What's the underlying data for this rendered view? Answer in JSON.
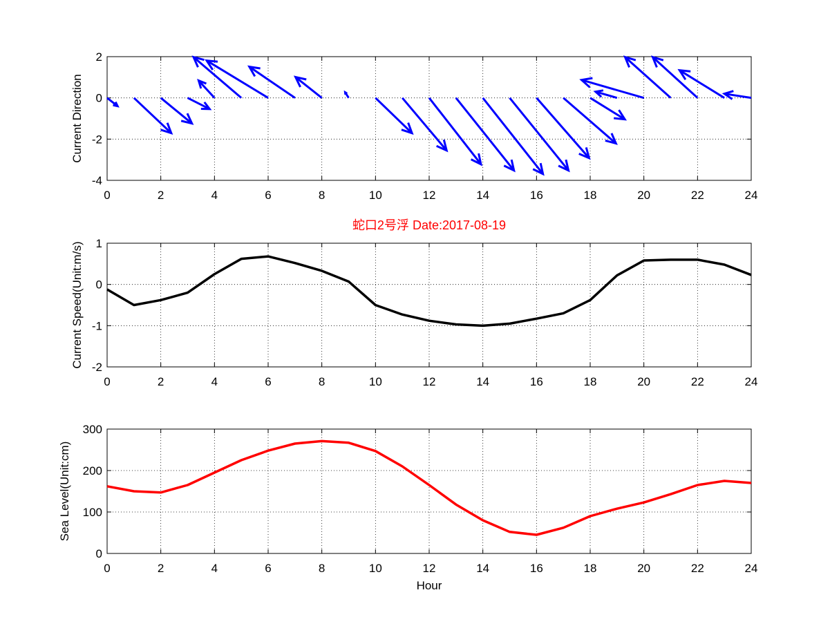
{
  "chart_data": [
    {
      "type": "quiver",
      "ylabel": "Current Direction",
      "xlim": [
        0,
        24
      ],
      "ylim": [
        -4,
        2
      ],
      "xticks": [
        0,
        2,
        4,
        6,
        8,
        10,
        12,
        14,
        16,
        18,
        20,
        22,
        24
      ],
      "yticks": [
        -4,
        -2,
        0,
        2
      ],
      "grid": true,
      "color": "#0000ff",
      "x": [
        0,
        1,
        2,
        3,
        4,
        5,
        6,
        7,
        8,
        9,
        10,
        11,
        12,
        13,
        14,
        15,
        16,
        17,
        18,
        19,
        20,
        21,
        22,
        23,
        24
      ],
      "u": [
        0.39,
        1.39,
        1.16,
        0.82,
        -0.59,
        -1.78,
        -2.29,
        -1.7,
        -0.98,
        -0.13,
        1.36,
        1.65,
        1.93,
        2.16,
        2.24,
        2.19,
        1.96,
        1.96,
        1.29,
        -0.8,
        -2.32,
        -1.7,
        -1.67,
        -1.67,
        -1.0
      ],
      "v": [
        -0.4,
        -1.71,
        -1.24,
        -0.54,
        0.84,
        1.98,
        1.81,
        1.51,
        1.01,
        0.27,
        -1.71,
        -2.55,
        -3.22,
        -3.52,
        -3.69,
        -3.52,
        -2.92,
        -2.21,
        -1.04,
        0.3,
        0.87,
        1.98,
        1.98,
        1.34,
        0.2
      ]
    },
    {
      "type": "line",
      "title": "蛇口2号浮   Date:2017-08-19",
      "title_color": "#ff0000",
      "ylabel": "Current Speed(Unit:m/s)",
      "xlim": [
        0,
        24
      ],
      "ylim": [
        -2,
        1
      ],
      "xticks": [
        0,
        2,
        4,
        6,
        8,
        10,
        12,
        14,
        16,
        18,
        20,
        22,
        24
      ],
      "yticks": [
        -2,
        -1,
        0,
        1
      ],
      "grid": true,
      "color": "#000000",
      "x": [
        0,
        1,
        2,
        3,
        4,
        5,
        6,
        7,
        8,
        9,
        10,
        11,
        12,
        13,
        14,
        15,
        16,
        17,
        18,
        19,
        20,
        21,
        22,
        23,
        24
      ],
      "y": [
        -0.12,
        -0.5,
        -0.38,
        -0.2,
        0.25,
        0.62,
        0.68,
        0.52,
        0.33,
        0.07,
        -0.5,
        -0.73,
        -0.88,
        -0.97,
        -1.0,
        -0.95,
        -0.83,
        -0.7,
        -0.38,
        0.22,
        0.58,
        0.6,
        0.6,
        0.48,
        0.23
      ]
    },
    {
      "type": "line",
      "xlabel": "Hour",
      "ylabel": "Sea Level(Unit:cm)",
      "xlim": [
        0,
        24
      ],
      "ylim": [
        0,
        300
      ],
      "xticks": [
        0,
        2,
        4,
        6,
        8,
        10,
        12,
        14,
        16,
        18,
        20,
        22,
        24
      ],
      "yticks": [
        0,
        100,
        200,
        300
      ],
      "grid": true,
      "color": "#ff0000",
      "x": [
        0,
        1,
        2,
        3,
        4,
        5,
        6,
        7,
        8,
        9,
        10,
        11,
        12,
        13,
        14,
        15,
        16,
        17,
        18,
        19,
        20,
        21,
        22,
        23,
        24
      ],
      "y": [
        162,
        150,
        147,
        165,
        195,
        225,
        248,
        265,
        271,
        267,
        247,
        210,
        165,
        118,
        80,
        52,
        45,
        62,
        90,
        108,
        123,
        143,
        165,
        175,
        170
      ]
    }
  ]
}
